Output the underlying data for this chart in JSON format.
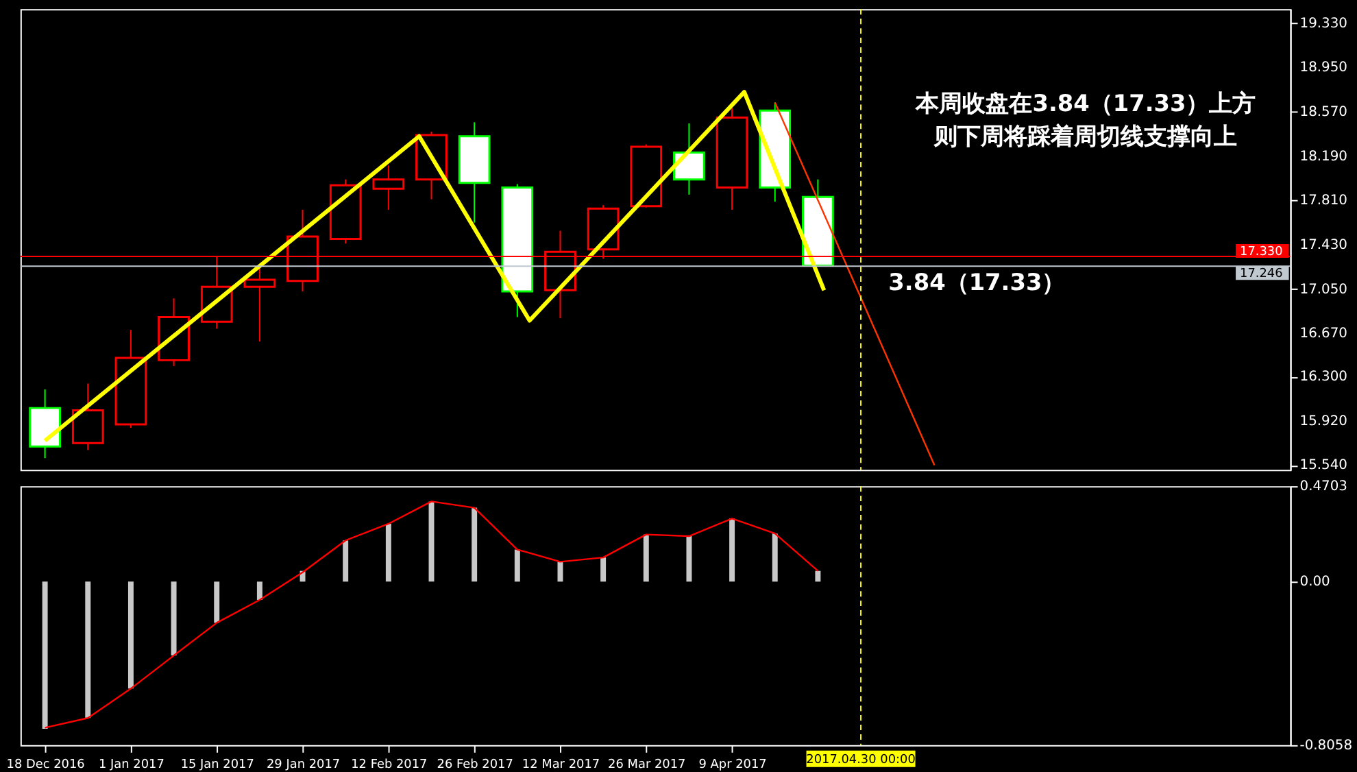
{
  "chart_data": [
    {
      "type": "candlestick",
      "tick_labels": "y",
      "x": [
        "2016-12-18",
        "2016-12-25",
        "2017-01-01",
        "2017-01-08",
        "2017-01-15",
        "2017-01-22",
        "2017-01-29",
        "2017-02-05",
        "2017-02-12",
        "2017-02-19",
        "2017-02-26",
        "2017-03-05",
        "2017-03-12",
        "2017-03-19",
        "2017-03-26",
        "2017-04-02",
        "2017-04-09",
        "2017-04-16",
        "2017-04-23"
      ],
      "ohlc": [
        [
          16.03,
          16.19,
          15.6,
          15.7
        ],
        [
          15.73,
          16.24,
          15.67,
          16.01
        ],
        [
          15.89,
          16.7,
          15.86,
          16.46
        ],
        [
          16.44,
          16.97,
          16.39,
          16.81
        ],
        [
          16.77,
          17.33,
          16.71,
          17.07
        ],
        [
          17.07,
          17.24,
          16.6,
          17.13
        ],
        [
          17.12,
          17.73,
          17.03,
          17.5
        ],
        [
          17.48,
          17.99,
          17.44,
          17.94
        ],
        [
          17.91,
          18.11,
          17.73,
          17.99
        ],
        [
          17.99,
          18.4,
          17.82,
          18.37
        ],
        [
          18.36,
          18.48,
          17.62,
          17.96
        ],
        [
          17.92,
          17.95,
          16.81,
          17.03
        ],
        [
          17.04,
          17.55,
          16.8,
          17.37
        ],
        [
          17.39,
          17.77,
          17.31,
          17.74
        ],
        [
          17.76,
          18.29,
          17.75,
          18.27
        ],
        [
          18.22,
          18.47,
          17.86,
          17.99
        ],
        [
          17.92,
          18.6,
          17.73,
          18.52
        ],
        [
          18.58,
          18.65,
          17.8,
          17.92
        ],
        [
          17.84,
          17.99,
          17.25,
          17.25
        ]
      ],
      "colors": [
        "#00ff00",
        "#ff0000",
        "#ff0000",
        "#ff0000",
        "#ff0000",
        "#ff0000",
        "#ff0000",
        "#ff0000",
        "#ff0000",
        "#ff0000",
        "#00ff00",
        "#00ff00",
        "#ff0000",
        "#ff0000",
        "#ff0000",
        "#00ff00",
        "#ff0000",
        "#00ff00",
        "#00ff00"
      ],
      "series": [
        {
          "type": "line",
          "color": "#ffff00",
          "x": [
            "2016-12-18",
            "2017-02-17",
            "2017-03-07",
            "2017-04-11",
            "2017-04-24"
          ],
          "values": [
            15.75,
            18.36,
            16.78,
            18.74,
            17.04
          ]
        },
        {
          "type": "line",
          "color": "#ff3300",
          "x": [
            "2017-04-16",
            "2017-05-12"
          ],
          "values": [
            18.65,
            15.54
          ]
        }
      ],
      "xlim": [
        "2016-12-14",
        "2017-07-09"
      ],
      "ylim": [
        15.5,
        19.45
      ],
      "yticks": [
        {
          "value": 15.54,
          "label": "15.540"
        },
        {
          "value": 15.92,
          "label": "15.920"
        },
        {
          "value": 16.3,
          "label": "16.300"
        },
        {
          "value": 16.67,
          "label": "16.670"
        },
        {
          "value": 17.05,
          "label": "17.050"
        },
        {
          "value": 17.43,
          "label": "17.430"
        },
        {
          "value": 17.81,
          "label": "17.810"
        },
        {
          "value": 18.19,
          "label": "18.190"
        },
        {
          "value": 18.57,
          "label": "18.570"
        },
        {
          "value": 18.95,
          "label": "18.950"
        },
        {
          "value": 19.33,
          "label": "19.330"
        }
      ],
      "ref_lines": [
        {
          "axis": "y",
          "value": 17.33,
          "label": "17.330",
          "color": "#ff0000"
        },
        {
          "axis": "y",
          "value": 17.246,
          "label": "17.246",
          "color": "#c0c8d0"
        },
        {
          "axis": "x",
          "value": "2017-04-30",
          "label": null,
          "color": "#ffff00",
          "line_style": "dashed"
        }
      ],
      "annotations": [
        "本周收盘在3.84（17.33）上方",
        "则下周将踩着周切线支撑向上",
        "3.84（17.33）"
      ]
    },
    {
      "type": "bar",
      "x": [
        "2016-12-18",
        "2016-12-25",
        "2017-01-01",
        "2017-01-08",
        "2017-01-15",
        "2017-01-22",
        "2017-01-29",
        "2017-02-05",
        "2017-02-12",
        "2017-02-19",
        "2017-02-26",
        "2017-03-05",
        "2017-03-12",
        "2017-03-19",
        "2017-03-26",
        "2017-04-02",
        "2017-04-09",
        "2017-04-16",
        "2017-04-23"
      ],
      "series": [
        {
          "type": "bar",
          "color": "#c8c8c8",
          "values": [
            -0.725,
            -0.672,
            -0.527,
            -0.364,
            -0.203,
            -0.09,
            0.053,
            0.203,
            0.285,
            0.395,
            0.364,
            0.158,
            0.098,
            0.119,
            0.232,
            0.224,
            0.311,
            0.237,
            0.053
          ]
        },
        {
          "type": "line",
          "color": "#ff0000",
          "values": [
            -0.72,
            -0.672,
            -0.527,
            -0.364,
            -0.203,
            -0.09,
            0.046,
            0.203,
            0.285,
            0.395,
            0.364,
            0.158,
            0.098,
            0.119,
            0.232,
            0.224,
            0.311,
            0.237,
            0.053
          ]
        }
      ],
      "xlim": [
        "2016-12-14",
        "2017-07-09"
      ],
      "xticks": [
        {
          "value": "2016-12-18",
          "label": "18 Dec 2016"
        },
        {
          "value": "2017-01-01",
          "label": "1 Jan 2017"
        },
        {
          "value": "2017-01-15",
          "label": "15 Jan 2017"
        },
        {
          "value": "2017-01-29",
          "label": "29 Jan 2017"
        },
        {
          "value": "2017-02-12",
          "label": "12 Feb 2017"
        },
        {
          "value": "2017-02-26",
          "label": "26 Feb 2017"
        },
        {
          "value": "2017-03-12",
          "label": "12 Mar 2017"
        },
        {
          "value": "2017-03-26",
          "label": "26 Mar 2017"
        },
        {
          "value": "2017-04-09",
          "label": "9 Apr 2017"
        }
      ],
      "ylim": [
        -0.8058,
        0.4703
      ],
      "yticks": [
        -0.8058,
        {
          "value": 0,
          "label": "0.00"
        },
        0.4703
      ],
      "ref_lines": [
        {
          "axis": "x",
          "value": "2017-04-30",
          "label": "2017.04.30 00:00",
          "color": "#ffff00",
          "line_style": "dashed"
        }
      ]
    }
  ]
}
